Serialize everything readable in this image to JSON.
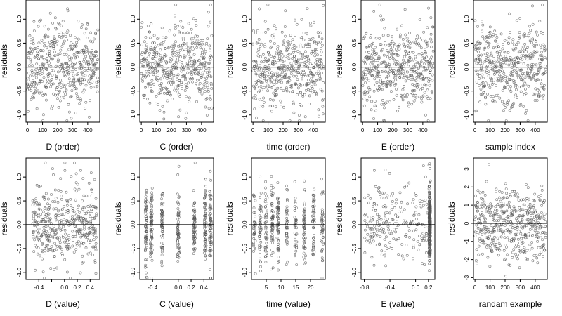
{
  "figure_title": "",
  "point_color": "#555555",
  "axis_color": "#000000",
  "chart_data": [
    {
      "type": "scatter",
      "xlabel": "D (order)",
      "ylabel": "residuals",
      "xlim": [
        -10,
        480
      ],
      "ylim": [
        -1.15,
        1.4
      ],
      "xticks": [
        0,
        100,
        200,
        300,
        400
      ],
      "yticks": [
        -1.0,
        -0.5,
        0.0,
        0.5,
        1.0
      ],
      "ytick_labels": [
        "-1.0",
        "-0.5",
        "0.0",
        "0.5",
        "1.0"
      ],
      "reference_line_y": 0,
      "points": {
        "kind": "index",
        "n": 470,
        "sd": 0.42,
        "seed": 11
      }
    },
    {
      "type": "scatter",
      "xlabel": "C (order)",
      "ylabel": "residuals",
      "xlim": [
        -10,
        480
      ],
      "ylim": [
        -1.15,
        1.4
      ],
      "xticks": [
        0,
        100,
        200,
        300,
        400
      ],
      "yticks": [
        -1.0,
        -0.5,
        0.0,
        0.5,
        1.0
      ],
      "ytick_labels": [
        "-1.0",
        "-0.5",
        "0.0",
        "0.5",
        "1.0"
      ],
      "reference_line_y": 0,
      "points": {
        "kind": "index",
        "n": 470,
        "sd": 0.42,
        "seed": 23
      }
    },
    {
      "type": "scatter",
      "xlabel": "time (order)",
      "ylabel": "residuals",
      "xlim": [
        -10,
        480
      ],
      "ylim": [
        -1.15,
        1.4
      ],
      "xticks": [
        0,
        100,
        200,
        300,
        400
      ],
      "yticks": [
        -1.0,
        -0.5,
        0.0,
        0.5,
        1.0
      ],
      "ytick_labels": [
        "-1.0",
        "-0.5",
        "0.0",
        "0.5",
        "1.0"
      ],
      "reference_line_y": 0,
      "points": {
        "kind": "index",
        "n": 470,
        "sd": 0.42,
        "seed": 37
      }
    },
    {
      "type": "scatter",
      "xlabel": "E (order)",
      "ylabel": "residuals",
      "xlim": [
        -10,
        480
      ],
      "ylim": [
        -1.15,
        1.4
      ],
      "xticks": [
        0,
        100,
        200,
        300,
        400
      ],
      "yticks": [
        -1.0,
        -0.5,
        0.0,
        0.5,
        1.0
      ],
      "ytick_labels": [
        "-1.0",
        "-0.5",
        "0.0",
        "0.5",
        "1.0"
      ],
      "reference_line_y": 0,
      "points": {
        "kind": "index",
        "n": 470,
        "sd": 0.42,
        "seed": 41
      }
    },
    {
      "type": "scatter",
      "xlabel": "sample index",
      "ylabel": "residuals",
      "xlim": [
        -10,
        480
      ],
      "ylim": [
        -1.15,
        1.4
      ],
      "xticks": [
        0,
        100,
        200,
        300,
        400
      ],
      "yticks": [
        -1.0,
        -0.5,
        0.0,
        0.5,
        1.0
      ],
      "ytick_labels": [
        "-1.0",
        "-0.5",
        "0.0",
        "0.5",
        "1.0"
      ],
      "reference_line_y": 0,
      "points": {
        "kind": "index",
        "n": 470,
        "sd": 0.42,
        "seed": 53
      }
    },
    {
      "type": "scatter",
      "xlabel": "D (value)",
      "ylabel": "residuals",
      "xlim": [
        -0.6,
        0.55
      ],
      "ylim": [
        -1.15,
        1.4
      ],
      "xticks": [
        -0.4,
        -0.2,
        0.0,
        0.2,
        0.4
      ],
      "xtick_labels": [
        "-0.4",
        "",
        "0.0",
        "0.2",
        "0.4"
      ],
      "yticks": [
        -1.0,
        -0.5,
        0.0,
        0.5,
        1.0
      ],
      "ytick_labels": [
        "-1.0",
        "-0.5",
        "0.0",
        "0.5",
        "1.0"
      ],
      "reference_line_y": 0,
      "points": {
        "kind": "uniform",
        "n": 420,
        "xmin": -0.5,
        "xmax": 0.5,
        "sd": 0.42,
        "seed": 67
      }
    },
    {
      "type": "scatter",
      "xlabel": "C (value)",
      "ylabel": "residuals",
      "xlim": [
        -0.6,
        0.55
      ],
      "ylim": [
        -1.15,
        1.4
      ],
      "xticks": [
        -0.4,
        0.0,
        0.2,
        0.4
      ],
      "xtick_labels": [
        "-0.4",
        "0.0",
        "0.2",
        "0.4"
      ],
      "yticks": [
        -1.0,
        -0.5,
        0.0,
        0.5,
        1.0
      ],
      "ytick_labels": [
        "-1.0",
        "-0.5",
        "0.0",
        "0.5",
        "1.0"
      ],
      "reference_line_y": 0,
      "points": {
        "kind": "discrete",
        "n": 470,
        "levels": [
          -0.5,
          -0.42,
          -0.25,
          0.0,
          0.25,
          0.42,
          0.5
        ],
        "jitter": 0.015,
        "sd": 0.42,
        "seed": 71
      }
    },
    {
      "type": "scatter",
      "xlabel": "time (value)",
      "ylabel": "residuals",
      "xlim": [
        0,
        25
      ],
      "ylim": [
        -1.15,
        1.4
      ],
      "xticks": [
        5,
        10,
        15,
        20
      ],
      "xtick_labels": [
        "5",
        "10",
        "15",
        "20"
      ],
      "yticks": [
        -1.0,
        -0.5,
        0.0,
        0.5,
        1.0
      ],
      "ytick_labels": [
        "-1.0",
        "-0.5",
        "0.0",
        "0.5",
        "1.0"
      ],
      "reference_line_y": 0,
      "points": {
        "kind": "discrete",
        "n": 470,
        "levels": [
          1,
          3,
          5,
          7,
          9,
          12,
          15,
          18,
          21,
          24
        ],
        "jitter": 0.35,
        "sd": 0.42,
        "seed": 83
      }
    },
    {
      "type": "scatter",
      "xlabel": "E (value)",
      "ylabel": "residuals",
      "xlim": [
        -0.85,
        0.3
      ],
      "ylim": [
        -1.15,
        1.4
      ],
      "xticks": [
        -0.8,
        -0.4,
        0.0,
        0.2
      ],
      "xtick_labels": [
        "-0.8",
        "-0.4",
        "0.0",
        "0.2"
      ],
      "yticks": [
        -1.0,
        -0.5,
        0.0,
        0.5,
        1.0
      ],
      "ytick_labels": [
        "-1.0",
        "-0.5",
        "0.0",
        "0.5",
        "1.0"
      ],
      "reference_line_y": 0,
      "points": {
        "kind": "cluster",
        "n_spread": 220,
        "spread_xmin": -0.8,
        "spread_xmax": 0.2,
        "n_cluster": 250,
        "cluster_x": 0.22,
        "cluster_jitter": 0.012,
        "sd": 0.42,
        "seed": 97
      }
    },
    {
      "type": "scatter",
      "xlabel": "randam example",
      "ylabel": "residuals",
      "xlim": [
        -10,
        480
      ],
      "ylim": [
        -3.1,
        3.6
      ],
      "xticks": [
        0,
        100,
        200,
        300,
        400
      ],
      "yticks": [
        -3,
        -2,
        -1,
        0,
        1,
        2,
        3
      ],
      "ytick_labels": [
        "-3",
        "-2",
        "-1",
        "0",
        "1",
        "2",
        "3"
      ],
      "reference_line_y": 0,
      "points": {
        "kind": "index",
        "n": 470,
        "sd": 1.0,
        "seed": 101
      }
    }
  ]
}
